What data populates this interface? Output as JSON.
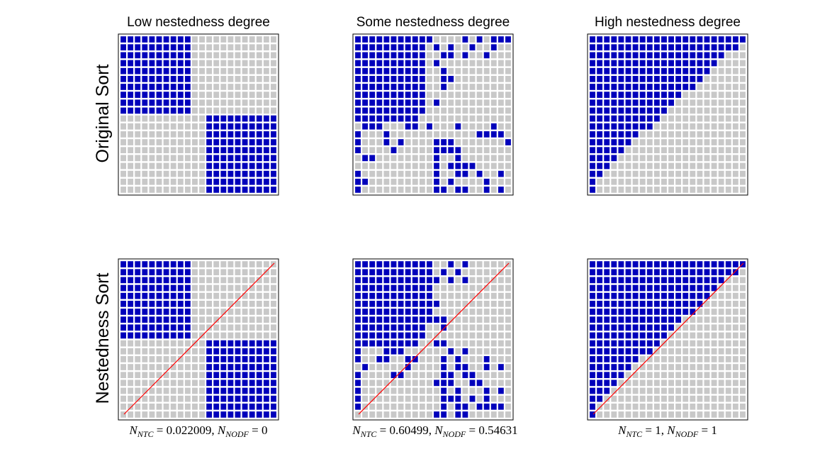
{
  "figure": {
    "column_titles": [
      "Low nestedness degree",
      "Some nestedness degree",
      "High nestedness degree"
    ],
    "row_labels": [
      "Original Sort",
      "Nestedness Sort"
    ],
    "captions": [
      {
        "ntc_sub": "NTC",
        "ntc_value": "0.022009",
        "nodf_sub": "NODF",
        "nodf_value": "0"
      },
      {
        "ntc_sub": "NTC",
        "ntc_value": "0.60499",
        "nodf_sub": "NODF",
        "nodf_value": "0.54631"
      },
      {
        "ntc_sub": "NTC",
        "ntc_value": "1",
        "nodf_sub": "NODF",
        "nodf_value": "1"
      }
    ]
  },
  "colors": {
    "filled": "#0000bb",
    "empty": "#c8c8c8",
    "frame": "#000000",
    "diagonal": "#ff0000"
  },
  "chart_data": [
    {
      "type": "heatmap",
      "title": "Low nestedness degree",
      "row_label": "Original Sort",
      "matrix": [
        "1111111111000000000000",
        "1111111111000000000000",
        "1111111111000000000000",
        "1111111111000000000000",
        "1111111111000000000000",
        "1111111111000000000000",
        "1111111111000000000000",
        "1111111111000000000000",
        "1111111111000000000000",
        "1111111111000000000000",
        "0000000000001111111111",
        "0000000000001111111111",
        "0000000000001111111111",
        "0000000000001111111111",
        "0000000000001111111111",
        "0000000000001111111111",
        "0000000000001111111111",
        "0000000000001111111111",
        "0000000000001111111111",
        "0000000000001111111111"
      ],
      "diagonal": false
    },
    {
      "type": "heatmap",
      "title": "Some nestedness degree",
      "row_label": "Original Sort",
      "matrix": [
        "1111111111100001010111",
        "1111111111010100100100",
        "1111111111001101001000",
        "1111111111010000000000",
        "1111111111001000000000",
        "1111111111001100000000",
        "1111111111001000000000",
        "1111111111000000000000",
        "1111111111010000000000",
        "1111111111000000000000",
        "1111111110000000000000",
        "0111000110100010000100",
        "1000100000000000011110",
        "1000101000011100000001",
        "1000010000011110000000",
        "0110000000010010000000",
        "0000000000010111100000",
        "1000000000010011010010",
        "1100000000010100001000",
        "1000000000011011001010"
      ],
      "diagonal": false
    },
    {
      "type": "heatmap",
      "title": "High nestedness degree",
      "row_label": "Original Sort",
      "matrix": [
        "1111111111111111111111",
        "1111111111111111111110",
        "1111111111111111111000",
        "1111111111111111110000",
        "1111111111111111100000",
        "1111111111111111000000",
        "1111111111111110000000",
        "1111111111111000000000",
        "1111111111110000000000",
        "1111111111100000000000",
        "1111111111000000000000",
        "1111111110000000000000",
        "1111111000000000000000",
        "1111110000000000000000",
        "1111100000000000000000",
        "1111000000000000000000",
        "1110000000000000000000",
        "1100000000000000000000",
        "1000000000000000000000",
        "1000000000000000000000"
      ],
      "diagonal": false
    },
    {
      "type": "heatmap",
      "title": "",
      "row_label": "Nestedness Sort",
      "matrix": [
        "1111111111000000000000",
        "1111111111000000000000",
        "1111111111000000000000",
        "1111111111000000000000",
        "1111111111000000000000",
        "1111111111000000000000",
        "1111111111000000000000",
        "1111111111000000000000",
        "1111111111000000000000",
        "1111111111000000000000",
        "0000000000001111111111",
        "0000000000001111111111",
        "0000000000001111111111",
        "0000000000001111111111",
        "0000000000001111111111",
        "0000000000001111111111",
        "0000000000001111111111",
        "0000000000001111111111",
        "0000000000001111111111",
        "0000000000001111111111"
      ],
      "diagonal": true
    },
    {
      "type": "heatmap",
      "title": "",
      "row_label": "Nestedness Sort",
      "matrix": [
        "1111111111100101000000",
        "1111111111101010000000",
        "1111111111110101000000",
        "1111111111100000000000",
        "1111111111100000000000",
        "1111111111110000000000",
        "1111111111100000000000",
        "1111111111111000000000",
        "1111111111001000000000",
        "1111111111000000000000",
        "1111111110011000000000",
        "1000111000000101000000",
        "1001100110001010001000",
        "0100000100001011001010",
        "1000011000001101100000",
        "1000000000011100110000",
        "1000000000001010001010",
        "1000000000001110101000",
        "1000000000001011011110",
        "0000000000011011000000"
      ],
      "diagonal": true
    },
    {
      "type": "heatmap",
      "title": "",
      "row_label": "Nestedness Sort",
      "matrix": [
        "1111111111111111111111",
        "1111111111111111111110",
        "1111111111111111111000",
        "1111111111111111110000",
        "1111111111111111100000",
        "1111111111111111000000",
        "1111111111111110000000",
        "1111111111111000000000",
        "1111111111110000000000",
        "1111111111100000000000",
        "1111111111000000000000",
        "1111111110000000000000",
        "1111111000000000000000",
        "1111110000000000000000",
        "1111100000000000000000",
        "1111000000000000000000",
        "1110000000000000000000",
        "1100000000000000000000",
        "1000000000000000000000",
        "1000000000000000000000"
      ],
      "diagonal": true
    }
  ]
}
